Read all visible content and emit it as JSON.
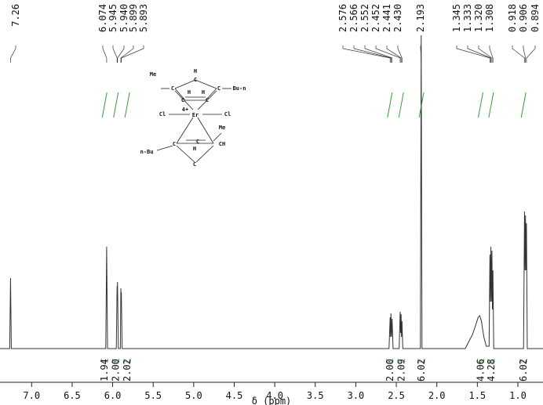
{
  "chart_data": {
    "type": "line",
    "xlim": [
      7.39,
      0.69
    ],
    "ylim": [
      0,
      420
    ],
    "x_label": "δ (ppm)",
    "xticks": [
      {
        "value": 7,
        "label": "7.0"
      },
      6.5,
      {
        "value": 6,
        "label": "6.0"
      },
      5.5,
      {
        "value": 5,
        "label": "5.0"
      },
      4.5,
      {
        "value": 4,
        "label": "4.0"
      },
      3.5,
      {
        "value": 3,
        "label": "3.0"
      },
      2.5,
      {
        "value": 2,
        "label": "2.0"
      },
      1.5,
      {
        "value": 1,
        "label": "1.0"
      }
    ],
    "series": [
      {
        "color": "#333333",
        "x": [
          7.39,
          7.27,
          7.26,
          7.25,
          6.085,
          6.074,
          6.063,
          5.955,
          5.945,
          5.942,
          5.94,
          5.93,
          5.905,
          5.899,
          5.896,
          5.893,
          5.883,
          2.59,
          2.576,
          2.571,
          2.566,
          2.559,
          2.552,
          2.54,
          2.465,
          2.452,
          2.447,
          2.441,
          2.436,
          2.43,
          2.42,
          2.203,
          2.193,
          2.183,
          1.65,
          1.56,
          1.52,
          1.49,
          1.47,
          1.45,
          1.42,
          1.39,
          1.355,
          1.345,
          1.339,
          1.333,
          1.326,
          1.32,
          1.314,
          1.308,
          1.298,
          0.93,
          0.918,
          0.912,
          0.906,
          0.9,
          0.894,
          0.884,
          0.69
        ],
        "values": [
          0,
          0,
          90,
          0,
          0,
          130,
          0,
          0,
          80,
          70,
          85,
          0,
          0,
          77,
          60,
          72,
          0,
          0,
          40,
          15,
          45,
          15,
          38,
          0,
          0,
          47,
          20,
          44,
          15,
          35,
          0,
          0,
          400,
          0,
          0,
          18,
          30,
          40,
          42,
          35,
          15,
          3,
          3,
          120,
          60,
          130,
          60,
          125,
          50,
          100,
          0,
          0,
          175,
          100,
          170,
          100,
          160,
          0,
          0
        ]
      }
    ],
    "peak_labels": [
      7.26,
      6.074,
      5.945,
      {
        "value": 5.94,
        "label": "5.940"
      },
      5.899,
      5.893,
      2.576,
      2.566,
      2.552,
      2.452,
      2.441,
      {
        "value": 2.43,
        "label": "2.430"
      },
      2.193,
      1.345,
      1.333,
      {
        "value": 1.32,
        "label": "1.320"
      },
      1.308,
      0.918,
      0.906,
      0.894
    ],
    "integrals": {
      "x": [
        6.1,
        5.96,
        5.82,
        2.58,
        2.44,
        2.19,
        1.46,
        1.33,
        0.93
      ],
      "values": [
        1.94,
        2,
        2.02,
        2,
        2.09,
        6.02,
        4.06,
        4.28,
        6.02
      ],
      "value_labels": [
        "1.94",
        "2.00",
        "2.02",
        "2.00",
        "2.09",
        "6.02",
        "4.06",
        "4.28",
        "6.02"
      ],
      "color": "#3a9a3a"
    },
    "structure_labels": [
      "H",
      "C",
      "Me",
      "C",
      "C",
      "Bu-n",
      "H",
      "H",
      "C",
      "C",
      "Cl",
      "4+",
      "Er",
      "Cl",
      "Me",
      "C",
      "C",
      "CH",
      "H",
      "n-Bu",
      "C"
    ]
  }
}
